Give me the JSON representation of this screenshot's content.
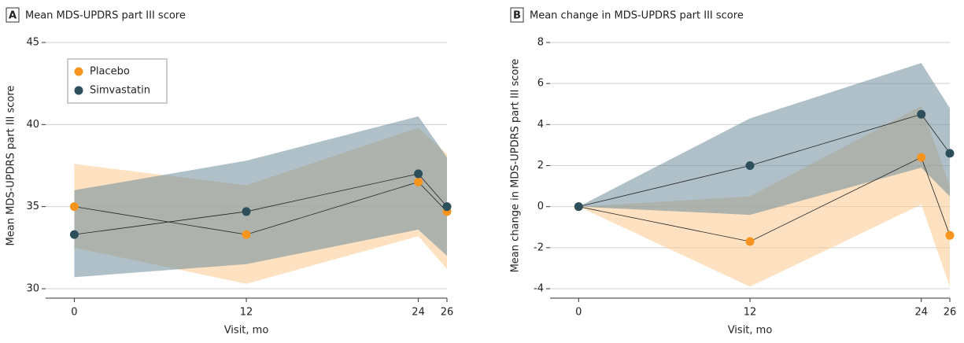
{
  "chart_data": [
    {
      "type": "line",
      "panel_label": "A",
      "title": "Mean MDS-UPDRS part III score",
      "x_label": "Visit, mo",
      "y_label": "Mean MDS-UPDRS part III score",
      "x": [
        0,
        12,
        24,
        26
      ],
      "xlim": [
        -2,
        26
      ],
      "xticks": [
        0,
        12,
        24,
        26
      ],
      "ylim": [
        30,
        45
      ],
      "yticks": [
        30,
        35,
        40,
        45
      ],
      "grid": true,
      "legend": "upper left",
      "series": [
        {
          "name": "Placebo",
          "color": "#f7941d",
          "band_color": "#fbc98d",
          "values": [
            35.0,
            33.3,
            36.5,
            34.7
          ],
          "lower": [
            32.5,
            30.3,
            33.2,
            31.2
          ],
          "upper": [
            37.6,
            36.3,
            39.8,
            38.2
          ]
        },
        {
          "name": "Simvastatin",
          "color": "#2d4f5c",
          "band_color": "#6e8d9c",
          "values": [
            33.3,
            34.7,
            37.0,
            35.0
          ],
          "lower": [
            30.7,
            31.5,
            33.6,
            32.0
          ],
          "upper": [
            36.0,
            37.8,
            40.5,
            38.0
          ]
        }
      ]
    },
    {
      "type": "line",
      "panel_label": "B",
      "title": "Mean change in MDS-UPDRS part III score",
      "x_label": "Visit, mo",
      "y_label": "Mean change in MDS-UPDRS part III score",
      "x": [
        0,
        12,
        24,
        26
      ],
      "xlim": [
        -2,
        26
      ],
      "xticks": [
        0,
        12,
        24,
        26
      ],
      "ylim": [
        -4,
        8
      ],
      "yticks": [
        -4,
        -2,
        0,
        2,
        4,
        6,
        8
      ],
      "grid": true,
      "series": [
        {
          "color": "#f7941d",
          "band_color": "#fbc98d",
          "values": [
            0,
            -1.7,
            2.4,
            -1.4
          ],
          "lower": [
            0,
            -3.9,
            0.1,
            -3.9
          ],
          "upper": [
            0,
            0.5,
            4.9,
            1.0
          ]
        },
        {
          "color": "#2d4f5c",
          "band_color": "#6e8d9c",
          "values": [
            0,
            2.0,
            4.5,
            2.6
          ],
          "lower": [
            0,
            -0.4,
            1.9,
            0.5
          ],
          "upper": [
            0,
            4.3,
            7.0,
            4.8
          ]
        }
      ]
    }
  ]
}
